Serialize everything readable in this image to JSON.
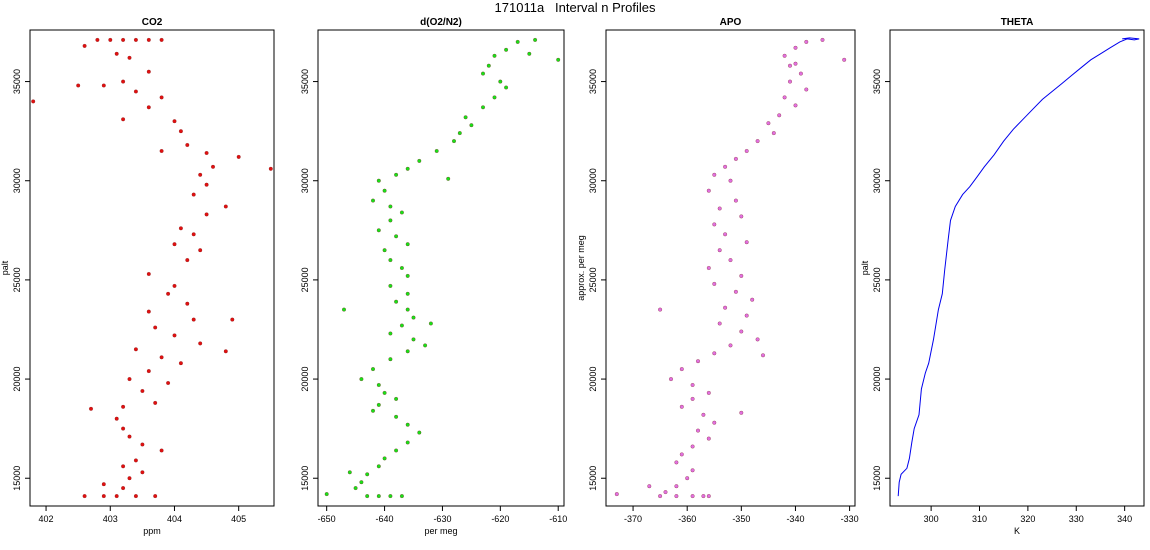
{
  "page_title": "171011a   Interval n Profiles",
  "chart_data": [
    {
      "type": "scatter",
      "title": "CO2",
      "xlabel": "ppm",
      "ylabel": "palt",
      "xlim": [
        401.75,
        405.55
      ],
      "ylim": [
        13600,
        37600
      ],
      "xticks": [
        402,
        403,
        404,
        405
      ],
      "yticks": [
        15000,
        20000,
        25000,
        30000,
        35000
      ],
      "color": "#e01010",
      "marker": "circle",
      "series": [
        {
          "values": [
            [
              402.8,
              37100
            ],
            [
              403.0,
              37100
            ],
            [
              403.2,
              37100
            ],
            [
              403.4,
              37100
            ],
            [
              403.6,
              37100
            ],
            [
              403.8,
              37100
            ],
            [
              402.6,
              36800
            ],
            [
              403.1,
              36400
            ],
            [
              403.3,
              36200
            ],
            [
              403.6,
              35500
            ],
            [
              403.2,
              35000
            ],
            [
              402.9,
              34800
            ],
            [
              403.4,
              34500
            ],
            [
              403.8,
              34200
            ],
            [
              403.6,
              33700
            ],
            [
              403.2,
              33100
            ],
            [
              404.0,
              33000
            ],
            [
              404.1,
              32500
            ],
            [
              404.2,
              31800
            ],
            [
              403.8,
              31500
            ],
            [
              404.5,
              31400
            ],
            [
              404.6,
              30700
            ],
            [
              404.4,
              30300
            ],
            [
              404.5,
              29800
            ],
            [
              404.3,
              29300
            ],
            [
              404.8,
              28700
            ],
            [
              404.5,
              28300
            ],
            [
              404.1,
              27600
            ],
            [
              404.3,
              27300
            ],
            [
              404.0,
              26800
            ],
            [
              404.4,
              26500
            ],
            [
              404.2,
              26000
            ],
            [
              403.6,
              25300
            ],
            [
              404.0,
              24700
            ],
            [
              403.9,
              24300
            ],
            [
              404.2,
              23800
            ],
            [
              403.6,
              23400
            ],
            [
              404.3,
              23000
            ],
            [
              403.7,
              22600
            ],
            [
              404.0,
              22200
            ],
            [
              404.4,
              21800
            ],
            [
              403.4,
              21500
            ],
            [
              403.8,
              21100
            ],
            [
              404.1,
              20800
            ],
            [
              403.6,
              20400
            ],
            [
              403.3,
              20000
            ],
            [
              403.9,
              19800
            ],
            [
              403.5,
              19400
            ],
            [
              403.7,
              18800
            ],
            [
              403.2,
              18600
            ],
            [
              403.1,
              18000
            ],
            [
              403.2,
              17500
            ],
            [
              403.3,
              17100
            ],
            [
              403.5,
              16700
            ],
            [
              403.8,
              16400
            ],
            [
              403.4,
              15900
            ],
            [
              403.2,
              15600
            ],
            [
              403.5,
              15300
            ],
            [
              403.3,
              15000
            ],
            [
              402.9,
              14700
            ],
            [
              403.2,
              14500
            ],
            [
              402.6,
              14100
            ],
            [
              402.9,
              14100
            ],
            [
              403.1,
              14100
            ],
            [
              403.4,
              14100
            ],
            [
              403.7,
              14100
            ],
            [
              401.8,
              34000
            ],
            [
              405.5,
              30600
            ],
            [
              405.0,
              31200
            ],
            [
              402.5,
              34800
            ],
            [
              404.8,
              21400
            ],
            [
              404.9,
              23000
            ],
            [
              402.7,
              18500
            ]
          ]
        }
      ]
    },
    {
      "type": "scatter",
      "title": "d(O2/N2)",
      "xlabel": "per meg",
      "ylabel": "",
      "xlim": [
        -651.5,
        -609.0
      ],
      "ylim": [
        13600,
        37600
      ],
      "xticks": [
        -650,
        -640,
        -630,
        -620,
        -610
      ],
      "yticks": [
        15000,
        20000,
        25000,
        30000,
        35000
      ],
      "color": "#18e018",
      "marker": "circle",
      "series": [
        {
          "values": [
            [
              -614,
              37100
            ],
            [
              -617,
              37000
            ],
            [
              -619,
              36600
            ],
            [
              -621,
              36300
            ],
            [
              -622,
              35800
            ],
            [
              -623,
              35400
            ],
            [
              -620,
              35000
            ],
            [
              -619,
              34700
            ],
            [
              -621,
              34200
            ],
            [
              -623,
              33700
            ],
            [
              -626,
              33200
            ],
            [
              -625,
              32800
            ],
            [
              -627,
              32400
            ],
            [
              -628,
              32000
            ],
            [
              -631,
              31500
            ],
            [
              -634,
              31000
            ],
            [
              -636,
              30600
            ],
            [
              -638,
              30300
            ],
            [
              -641,
              30000
            ],
            [
              -640,
              29500
            ],
            [
              -642,
              29000
            ],
            [
              -639,
              28700
            ],
            [
              -637,
              28400
            ],
            [
              -639,
              28000
            ],
            [
              -641,
              27500
            ],
            [
              -638,
              27200
            ],
            [
              -636,
              26800
            ],
            [
              -640,
              26500
            ],
            [
              -639,
              26000
            ],
            [
              -637,
              25600
            ],
            [
              -636,
              25200
            ],
            [
              -639,
              24700
            ],
            [
              -636,
              24300
            ],
            [
              -638,
              23900
            ],
            [
              -636,
              23500
            ],
            [
              -635,
              23100
            ],
            [
              -637,
              22700
            ],
            [
              -639,
              22300
            ],
            [
              -635,
              22000
            ],
            [
              -633,
              21700
            ],
            [
              -636,
              21400
            ],
            [
              -639,
              21000
            ],
            [
              -642,
              20500
            ],
            [
              -644,
              20000
            ],
            [
              -641,
              19700
            ],
            [
              -640,
              19300
            ],
            [
              -638,
              19000
            ],
            [
              -641,
              18700
            ],
            [
              -642,
              18400
            ],
            [
              -638,
              18100
            ],
            [
              -636,
              17700
            ],
            [
              -634,
              17300
            ],
            [
              -636,
              16800
            ],
            [
              -638,
              16400
            ],
            [
              -640,
              16000
            ],
            [
              -641,
              15600
            ],
            [
              -643,
              15200
            ],
            [
              -644,
              14800
            ],
            [
              -645,
              14500
            ],
            [
              -643,
              14100
            ],
            [
              -641,
              14100
            ],
            [
              -639,
              14100
            ],
            [
              -637,
              14100
            ],
            [
              -610,
              36100
            ],
            [
              -647,
              23500
            ],
            [
              -632,
              22800
            ],
            [
              -646,
              15300
            ],
            [
              -650,
              14200
            ],
            [
              -615,
              36400
            ],
            [
              -629,
              30100
            ]
          ]
        }
      ]
    },
    {
      "type": "scatter",
      "title": "APO",
      "xlabel": "",
      "ylabel": "approx. per meg",
      "xlim": [
        -375,
        -329
      ],
      "ylim": [
        13600,
        37600
      ],
      "xticks": [
        -370,
        -360,
        -350,
        -340,
        -330
      ],
      "yticks": [
        15000,
        20000,
        25000,
        30000,
        35000
      ],
      "color": "#e070e0",
      "marker": "circle",
      "series": [
        {
          "values": [
            [
              -335,
              37100
            ],
            [
              -338,
              37000
            ],
            [
              -340,
              36700
            ],
            [
              -342,
              36300
            ],
            [
              -340,
              35900
            ],
            [
              -339,
              35400
            ],
            [
              -341,
              35000
            ],
            [
              -338,
              34600
            ],
            [
              -342,
              34200
            ],
            [
              -340,
              33800
            ],
            [
              -343,
              33300
            ],
            [
              -345,
              32900
            ],
            [
              -344,
              32400
            ],
            [
              -347,
              32000
            ],
            [
              -349,
              31500
            ],
            [
              -351,
              31100
            ],
            [
              -353,
              30700
            ],
            [
              -355,
              30300
            ],
            [
              -352,
              30000
            ],
            [
              -356,
              29500
            ],
            [
              -351,
              29000
            ],
            [
              -354,
              28600
            ],
            [
              -350,
              28200
            ],
            [
              -355,
              27800
            ],
            [
              -353,
              27300
            ],
            [
              -349,
              26900
            ],
            [
              -354,
              26500
            ],
            [
              -352,
              26000
            ],
            [
              -356,
              25600
            ],
            [
              -350,
              25200
            ],
            [
              -355,
              24800
            ],
            [
              -351,
              24400
            ],
            [
              -348,
              24000
            ],
            [
              -353,
              23600
            ],
            [
              -349,
              23200
            ],
            [
              -354,
              22800
            ],
            [
              -350,
              22400
            ],
            [
              -347,
              22000
            ],
            [
              -352,
              21700
            ],
            [
              -355,
              21300
            ],
            [
              -358,
              20900
            ],
            [
              -361,
              20500
            ],
            [
              -363,
              20000
            ],
            [
              -359,
              19700
            ],
            [
              -356,
              19300
            ],
            [
              -359,
              19000
            ],
            [
              -361,
              18600
            ],
            [
              -357,
              18200
            ],
            [
              -355,
              17800
            ],
            [
              -358,
              17400
            ],
            [
              -356,
              17000
            ],
            [
              -359,
              16600
            ],
            [
              -361,
              16200
            ],
            [
              -362,
              15800
            ],
            [
              -359,
              15400
            ],
            [
              -360,
              15000
            ],
            [
              -362,
              14600
            ],
            [
              -364,
              14300
            ],
            [
              -365,
              14100
            ],
            [
              -362,
              14100
            ],
            [
              -359,
              14100
            ],
            [
              -357,
              14100
            ],
            [
              -356,
              14100
            ],
            [
              -331,
              36100
            ],
            [
              -365,
              23500
            ],
            [
              -346,
              21200
            ],
            [
              -373,
              14200
            ],
            [
              -367,
              14600
            ],
            [
              -350,
              18300
            ],
            [
              -341,
              35800
            ]
          ]
        }
      ]
    },
    {
      "type": "line",
      "title": "THETA",
      "xlabel": "K",
      "ylabel": "palt",
      "xlim": [
        291.5,
        344.0
      ],
      "ylim": [
        13600,
        37600
      ],
      "xticks": [
        300,
        310,
        320,
        330,
        340
      ],
      "yticks": [
        15000,
        20000,
        25000,
        30000,
        35000
      ],
      "color": "#0000ee",
      "series": [
        {
          "values": [
            [
              293.2,
              14100
            ],
            [
              293.4,
              14800
            ],
            [
              293.8,
              15200
            ],
            [
              295.0,
              15500
            ],
            [
              295.5,
              16000
            ],
            [
              296.0,
              16800
            ],
            [
              296.5,
              17500
            ],
            [
              297.5,
              18200
            ],
            [
              298.0,
              19500
            ],
            [
              298.8,
              20300
            ],
            [
              299.5,
              20800
            ],
            [
              300.5,
              22000
            ],
            [
              301.5,
              23500
            ],
            [
              302.3,
              24300
            ],
            [
              302.8,
              25500
            ],
            [
              303.5,
              27000
            ],
            [
              304.0,
              28000
            ],
            [
              305.0,
              28700
            ],
            [
              306.5,
              29300
            ],
            [
              308.0,
              29700
            ],
            [
              309.5,
              30200
            ],
            [
              311.0,
              30700
            ],
            [
              313.0,
              31300
            ],
            [
              315.0,
              32000
            ],
            [
              317.0,
              32600
            ],
            [
              319.0,
              33100
            ],
            [
              321.0,
              33600
            ],
            [
              323.0,
              34100
            ],
            [
              325.0,
              34500
            ],
            [
              327.0,
              34900
            ],
            [
              329.0,
              35300
            ],
            [
              331.0,
              35700
            ],
            [
              333.0,
              36100
            ],
            [
              335.0,
              36400
            ],
            [
              337.0,
              36700
            ],
            [
              339.0,
              37000
            ],
            [
              340.5,
              37150
            ],
            [
              342.0,
              37100
            ],
            [
              343.0,
              37150
            ],
            [
              341.0,
              37200
            ],
            [
              339.5,
              37150
            ]
          ]
        }
      ]
    }
  ]
}
